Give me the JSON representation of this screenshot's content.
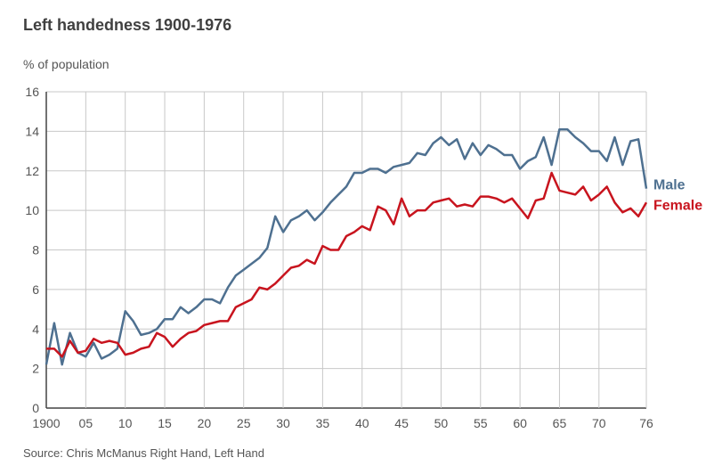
{
  "chart_data": {
    "type": "line",
    "title": "Left handedness 1900-1976",
    "ylabel": "% of population",
    "xlabel": "",
    "source": "Source: Chris McManus Right Hand, Left Hand",
    "xlim": [
      1900,
      1976
    ],
    "ylim": [
      0,
      16
    ],
    "grid": true,
    "legend_placement": "right, at line ends",
    "x_ticks": [
      1900,
      1905,
      1910,
      1915,
      1920,
      1925,
      1930,
      1935,
      1940,
      1945,
      1950,
      1955,
      1960,
      1965,
      1970,
      1976
    ],
    "x_tick_labels": [
      "1900",
      "05",
      "10",
      "15",
      "20",
      "25",
      "30",
      "35",
      "40",
      "45",
      "50",
      "55",
      "60",
      "65",
      "70",
      "76"
    ],
    "y_ticks": [
      0,
      2,
      4,
      6,
      8,
      10,
      12,
      14,
      16
    ],
    "y_tick_labels": [
      "0",
      "2",
      "4",
      "6",
      "8",
      "10",
      "12",
      "14",
      "16"
    ],
    "x_start": 1900,
    "series": [
      {
        "name": "Male",
        "color": "#4e7090",
        "values": [
          2.2,
          4.3,
          2.2,
          3.8,
          2.8,
          2.6,
          3.3,
          2.5,
          2.7,
          3.0,
          4.9,
          4.4,
          3.7,
          3.8,
          4.0,
          4.5,
          4.5,
          5.1,
          4.8,
          5.1,
          5.5,
          5.5,
          5.3,
          6.1,
          6.7,
          7.0,
          7.3,
          7.6,
          8.1,
          9.7,
          8.9,
          9.5,
          9.7,
          10.0,
          9.5,
          9.9,
          10.4,
          10.8,
          11.2,
          11.9,
          11.9,
          12.1,
          12.1,
          11.9,
          12.2,
          12.3,
          12.4,
          12.9,
          12.8,
          13.4,
          13.7,
          13.3,
          13.6,
          12.6,
          13.4,
          12.8,
          13.3,
          13.1,
          12.8,
          12.8,
          12.1,
          12.5,
          12.7,
          13.7,
          12.3,
          14.1,
          14.1,
          13.7,
          13.4,
          13.0,
          13.0,
          12.5,
          13.7,
          12.3,
          13.5,
          13.6,
          11.1
        ]
      },
      {
        "name": "Female",
        "color": "#c8141e",
        "values": [
          3.0,
          3.0,
          2.6,
          3.4,
          2.8,
          2.9,
          3.5,
          3.3,
          3.4,
          3.3,
          2.7,
          2.8,
          3.0,
          3.1,
          3.8,
          3.6,
          3.1,
          3.5,
          3.8,
          3.9,
          4.2,
          4.3,
          4.4,
          4.4,
          5.1,
          5.3,
          5.5,
          6.1,
          6.0,
          6.3,
          6.7,
          7.1,
          7.2,
          7.5,
          7.3,
          8.2,
          8.0,
          8.0,
          8.7,
          8.9,
          9.2,
          9.0,
          10.2,
          10.0,
          9.3,
          10.6,
          9.7,
          10.0,
          10.0,
          10.4,
          10.5,
          10.6,
          10.2,
          10.3,
          10.2,
          10.7,
          10.7,
          10.6,
          10.4,
          10.6,
          10.1,
          9.6,
          10.5,
          10.6,
          11.9,
          11.0,
          10.9,
          10.8,
          11.2,
          10.5,
          10.8,
          11.2,
          10.4,
          9.9,
          10.1,
          9.7,
          10.4
        ]
      }
    ]
  }
}
